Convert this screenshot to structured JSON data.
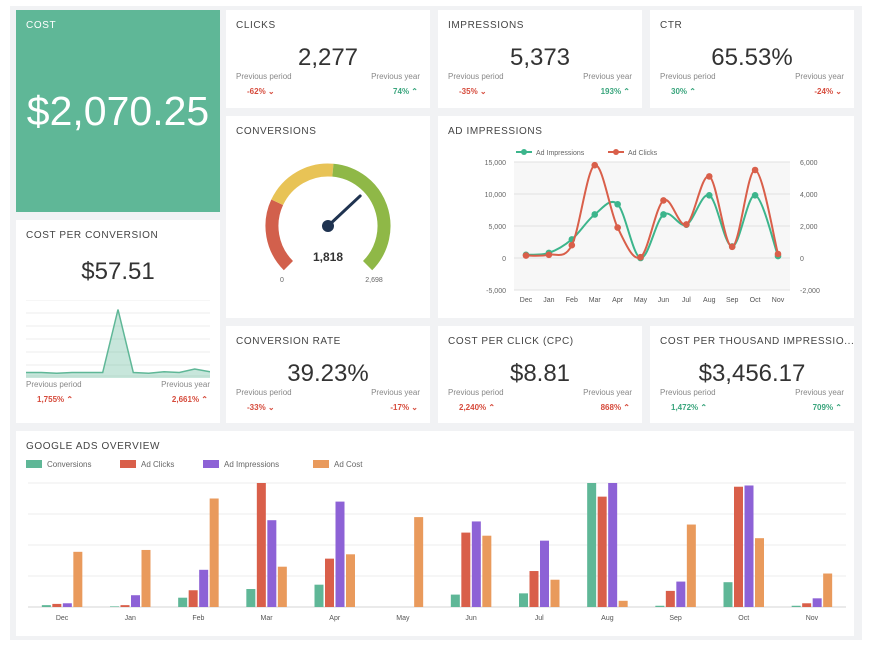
{
  "cost": {
    "title": "COST",
    "value": "$2,070.25"
  },
  "clicks": {
    "title": "CLICKS",
    "value": "2,277",
    "prev_period_label": "Previous period",
    "prev_year_label": "Previous year",
    "prev_period": "-62%",
    "prev_year": "74%"
  },
  "impressions": {
    "title": "IMPRESSIONS",
    "value": "5,373",
    "prev_period_label": "Previous period",
    "prev_year_label": "Previous year",
    "prev_period": "-35%",
    "prev_year": "193%"
  },
  "ctr": {
    "title": "CTR",
    "value": "65.53%",
    "prev_period_label": "Previous period",
    "prev_year_label": "Previous year",
    "prev_period": "30%",
    "prev_year": "-24%"
  },
  "cost_per_conversion": {
    "title": "COST PER CONVERSION",
    "value": "$57.51",
    "prev_period_label": "Previous period",
    "prev_year_label": "Previous year",
    "prev_period": "1,755%",
    "prev_year": "2,661%"
  },
  "conversions": {
    "title": "CONVERSIONS",
    "value": "1,818",
    "min": "0",
    "max": "2,698"
  },
  "conversion_rate": {
    "title": "CONVERSION RATE",
    "value": "39.23%",
    "prev_period_label": "Previous period",
    "prev_year_label": "Previous year",
    "prev_period": "-33%",
    "prev_year": "-17%"
  },
  "cpc": {
    "title": "COST PER CLICK (CPC)",
    "value": "$8.81",
    "prev_period_label": "Previous period",
    "prev_year_label": "Previous year",
    "prev_period": "2,240%",
    "prev_year": "868%"
  },
  "cpm": {
    "title": "COST PER THOUSAND IMPRESSIO...",
    "value": "$3,456.17",
    "prev_period_label": "Previous period",
    "prev_year_label": "Previous year",
    "prev_period": "1,472%",
    "prev_year": "709%"
  },
  "colors": {
    "green": "#5fb797",
    "red": "#d95f4a",
    "purple": "#8d62d6",
    "orange": "#e99a5c",
    "gauge_red": "#d2604c",
    "gauge_yellow": "#e8c356",
    "gauge_green": "#8fb847"
  },
  "chart_data": [
    {
      "type": "line",
      "title": "AD IMPRESSIONS",
      "categories": [
        "Dec",
        "Jan",
        "Feb",
        "Mar",
        "Apr",
        "May",
        "Jun",
        "Jul",
        "Aug",
        "Sep",
        "Oct",
        "Nov"
      ],
      "series": [
        {
          "name": "Ad Impressions",
          "axis": "left",
          "color": "#3cb58c",
          "values": [
            500,
            800,
            2900,
            6800,
            8400,
            0,
            6800,
            5200,
            9800,
            1800,
            9800,
            300
          ]
        },
        {
          "name": "Ad Clicks",
          "axis": "right",
          "color": "#d95f4a",
          "values": [
            150,
            200,
            800,
            5800,
            1900,
            50,
            3600,
            2100,
            5100,
            700,
            5500,
            250
          ]
        }
      ],
      "y_left": {
        "min": -5000,
        "max": 15000,
        "ticks": [
          "15,000",
          "10,000",
          "5,000",
          "0",
          "-5,000"
        ]
      },
      "y_right": {
        "min": -2000,
        "max": 6000,
        "ticks": [
          "6,000",
          "4,000",
          "2,000",
          "0",
          "-2,000"
        ]
      },
      "grid": true,
      "legend": "top-left"
    },
    {
      "type": "bar",
      "title": "GOOGLE ADS OVERVIEW",
      "categories": [
        "Dec",
        "Jan",
        "Feb",
        "Mar",
        "Apr",
        "May",
        "Jun",
        "Jul",
        "Aug",
        "Sep",
        "Oct",
        "Nov"
      ],
      "series": [
        {
          "name": "Conversions",
          "color": "#5fb797",
          "values": [
            1.5,
            0.5,
            7.5,
            14.5,
            18,
            0,
            10,
            11,
            100,
            1,
            20,
            1
          ]
        },
        {
          "name": "Ad Clicks",
          "color": "#d95f4a",
          "values": [
            2.5,
            1.5,
            13.5,
            100,
            39,
            0,
            60,
            29,
            89,
            13,
            97,
            3
          ]
        },
        {
          "name": "Ad Impressions",
          "color": "#8d62d6",
          "values": [
            3,
            9.5,
            30,
            70,
            85,
            0,
            69,
            53.5,
            100,
            20.5,
            98,
            7
          ]
        },
        {
          "name": "Ad Cost",
          "color": "#e99a5c",
          "values": [
            44.5,
            46,
            87.5,
            32.5,
            42.5,
            72.5,
            57.5,
            22,
            5,
            66.5,
            55.5,
            27
          ]
        }
      ],
      "grid": true,
      "legend": "top-left"
    },
    {
      "type": "area",
      "title": "COST PER CONVERSION",
      "values": [
        5,
        5,
        4,
        5,
        5,
        5,
        95,
        5,
        4,
        6,
        5,
        10,
        6
      ],
      "color": "#5fb797"
    }
  ]
}
